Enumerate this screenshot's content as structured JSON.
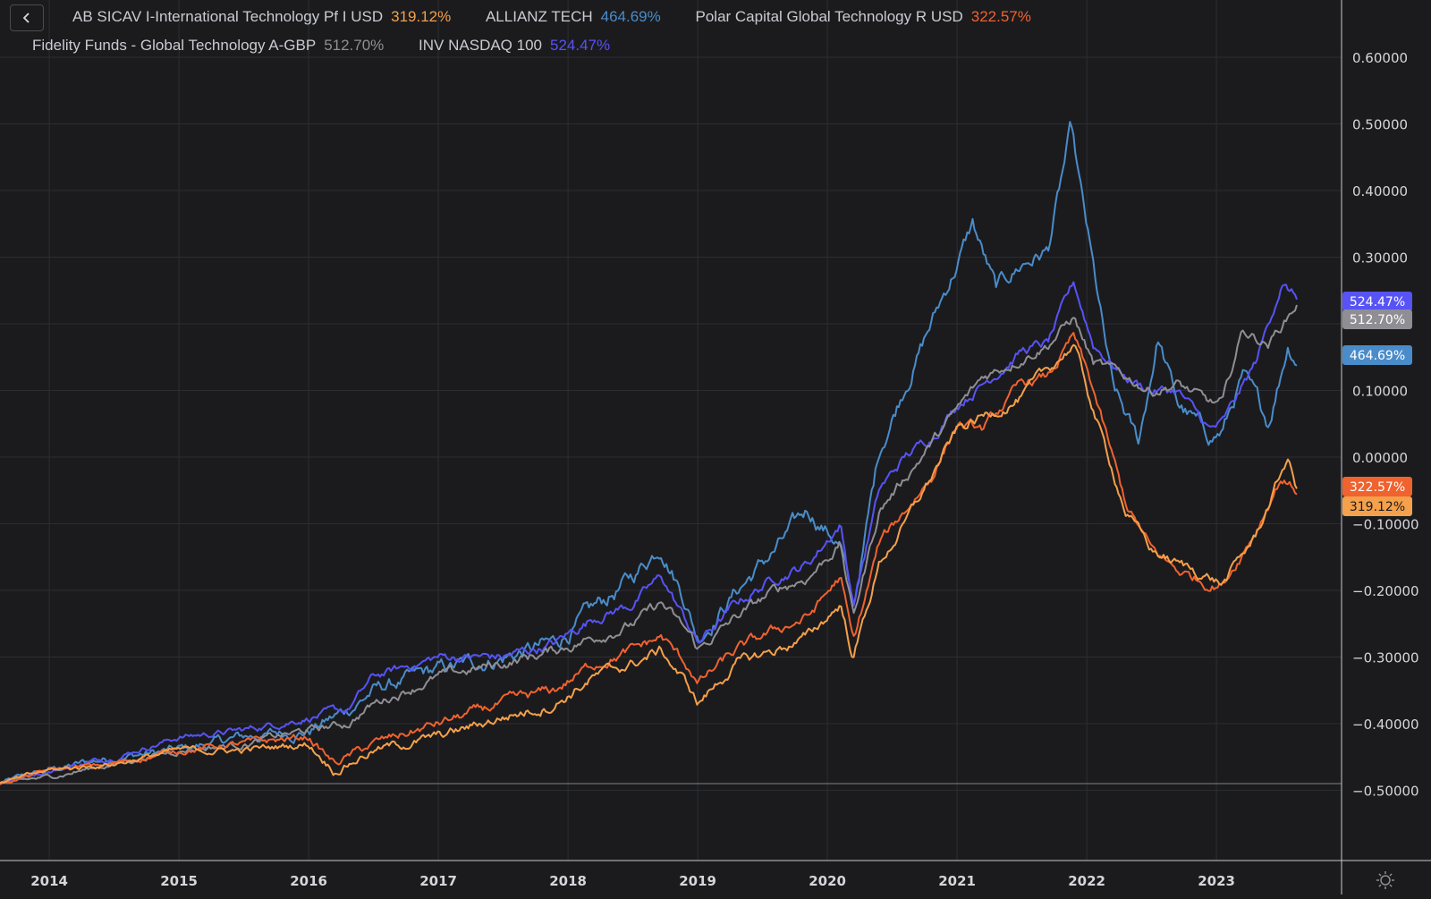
{
  "colors": {
    "background": "#1b1b1e",
    "grid": "#2c2d32",
    "axis_text": "#d5d6db",
    "AB": "#f5a04a",
    "ALLIANZ": "#4a8cc9",
    "POLAR": "#f0622e",
    "FIDELITY": "#8e8e94",
    "NASDAQ": "#5753f5"
  },
  "legend": {
    "row1": [
      {
        "key": "AB",
        "name": "AB SICAV I-International Technology Pf I USD",
        "value": "319.12%"
      },
      {
        "key": "ALLIANZ",
        "name": "ALLIANZ TECH",
        "value": "464.69%"
      },
      {
        "key": "POLAR",
        "name": "Polar Capital Global Technology R USD",
        "value": "322.57%"
      }
    ],
    "row2": [
      {
        "key": "FIDELITY",
        "name": "Fidelity Funds - Global Technology A-GBP",
        "value": "512.70%"
      },
      {
        "key": "NASDAQ",
        "name": "INV NASDAQ 100",
        "value": "524.47%"
      }
    ]
  },
  "chart_data": {
    "type": "line",
    "title": "",
    "xlabel": "",
    "ylabel": "",
    "xlim": [
      2013.62,
      2024.0
    ],
    "ylim": [
      -0.63,
      0.68
    ],
    "y_ticks": [
      "0.60000",
      "0.50000",
      "0.40000",
      "0.30000",
      "0.20000",
      "0.10000",
      "0.00000",
      "−0.10000",
      "−0.20000",
      "−0.30000",
      "−0.40000",
      "−0.50000"
    ],
    "y_tick_values": [
      0.6,
      0.5,
      0.4,
      0.3,
      0.2,
      0.1,
      0.0,
      -0.1,
      -0.2,
      -0.3,
      -0.4,
      -0.5
    ],
    "x_ticks": [
      "2014",
      "2015",
      "2016",
      "2017",
      "2018",
      "2019",
      "2020",
      "2021",
      "2022",
      "2023"
    ],
    "x_tick_values": [
      2014,
      2015,
      2016,
      2017,
      2018,
      2019,
      2020,
      2021,
      2022,
      2023
    ],
    "baseline": -0.49,
    "grid": true,
    "series": [
      {
        "key": "ALLIANZ",
        "name": "ALLIANZ TECH",
        "end_label": "464.69%",
        "x": [
          2013.62,
          2014.0,
          2014.5,
          2015.0,
          2015.5,
          2016.0,
          2016.3,
          2016.5,
          2017.0,
          2017.5,
          2017.9,
          2018.2,
          2018.5,
          2018.72,
          2018.9,
          2019.0,
          2019.3,
          2019.6,
          2019.85,
          2020.1,
          2020.2,
          2020.4,
          2020.6,
          2020.8,
          2021.0,
          2021.12,
          2021.3,
          2021.5,
          2021.7,
          2021.88,
          2021.95,
          2022.05,
          2022.2,
          2022.4,
          2022.55,
          2022.7,
          2022.95,
          2023.05,
          2023.2,
          2023.4,
          2023.55,
          2023.62
        ],
        "y": [
          -0.49,
          -0.47,
          -0.45,
          -0.44,
          -0.42,
          -0.41,
          -0.38,
          -0.35,
          -0.32,
          -0.3,
          -0.28,
          -0.23,
          -0.18,
          -0.13,
          -0.21,
          -0.27,
          -0.2,
          -0.14,
          -0.08,
          -0.13,
          -0.23,
          0.01,
          0.11,
          0.2,
          0.29,
          0.35,
          0.25,
          0.29,
          0.31,
          0.49,
          0.4,
          0.28,
          0.1,
          0.02,
          0.18,
          0.08,
          0.03,
          0.04,
          0.12,
          0.05,
          0.17,
          0.15
        ]
      },
      {
        "key": "NASDAQ",
        "name": "INV NASDAQ 100",
        "end_label": "524.47%",
        "x": [
          2013.62,
          2014.0,
          2014.5,
          2015.0,
          2015.5,
          2016.0,
          2016.3,
          2016.5,
          2017.0,
          2017.5,
          2017.9,
          2018.2,
          2018.5,
          2018.72,
          2018.95,
          2019.0,
          2019.3,
          2019.6,
          2019.85,
          2020.1,
          2020.2,
          2020.4,
          2020.6,
          2020.8,
          2021.0,
          2021.2,
          2021.5,
          2021.7,
          2021.9,
          2022.05,
          2022.3,
          2022.5,
          2022.7,
          2022.95,
          2023.05,
          2023.3,
          2023.5,
          2023.62
        ],
        "y": [
          -0.49,
          -0.47,
          -0.45,
          -0.42,
          -0.41,
          -0.39,
          -0.38,
          -0.33,
          -0.3,
          -0.3,
          -0.28,
          -0.24,
          -0.22,
          -0.18,
          -0.26,
          -0.28,
          -0.22,
          -0.18,
          -0.16,
          -0.1,
          -0.22,
          -0.05,
          0.0,
          0.03,
          0.08,
          0.11,
          0.16,
          0.17,
          0.26,
          0.17,
          0.12,
          0.1,
          0.1,
          0.04,
          0.05,
          0.14,
          0.26,
          0.24
        ]
      },
      {
        "key": "FIDELITY",
        "name": "Fidelity Funds - Global Technology A-GBP",
        "end_label": "512.70%",
        "x": [
          2013.62,
          2014.0,
          2014.5,
          2015.0,
          2015.5,
          2016.0,
          2016.3,
          2016.5,
          2017.0,
          2017.5,
          2017.9,
          2018.2,
          2018.5,
          2018.72,
          2018.95,
          2019.0,
          2019.3,
          2019.6,
          2019.85,
          2020.1,
          2020.2,
          2020.4,
          2020.6,
          2020.8,
          2021.0,
          2021.2,
          2021.5,
          2021.7,
          2021.9,
          2022.05,
          2022.3,
          2022.5,
          2022.7,
          2022.95,
          2023.05,
          2023.2,
          2023.4,
          2023.62
        ],
        "y": [
          -0.49,
          -0.48,
          -0.46,
          -0.44,
          -0.43,
          -0.41,
          -0.4,
          -0.37,
          -0.33,
          -0.31,
          -0.29,
          -0.27,
          -0.25,
          -0.22,
          -0.27,
          -0.29,
          -0.24,
          -0.2,
          -0.18,
          -0.13,
          -0.24,
          -0.08,
          -0.03,
          0.02,
          0.07,
          0.12,
          0.15,
          0.17,
          0.21,
          0.14,
          0.12,
          0.1,
          0.11,
          0.08,
          0.08,
          0.19,
          0.17,
          0.23
        ]
      },
      {
        "key": "POLAR",
        "name": "Polar Capital Global Technology R USD",
        "end_label": "322.57%",
        "x": [
          2013.62,
          2014.0,
          2014.5,
          2015.0,
          2015.5,
          2016.0,
          2016.2,
          2016.5,
          2017.0,
          2017.5,
          2017.9,
          2018.2,
          2018.5,
          2018.72,
          2018.95,
          2019.0,
          2019.3,
          2019.6,
          2019.85,
          2020.1,
          2020.2,
          2020.4,
          2020.6,
          2020.8,
          2021.0,
          2021.2,
          2021.5,
          2021.7,
          2021.9,
          2022.05,
          2022.3,
          2022.5,
          2022.7,
          2022.95,
          2023.05,
          2023.3,
          2023.5,
          2023.62
        ],
        "y": [
          -0.49,
          -0.47,
          -0.46,
          -0.44,
          -0.43,
          -0.42,
          -0.46,
          -0.43,
          -0.4,
          -0.37,
          -0.35,
          -0.31,
          -0.29,
          -0.27,
          -0.32,
          -0.34,
          -0.29,
          -0.26,
          -0.24,
          -0.18,
          -0.28,
          -0.13,
          -0.08,
          -0.03,
          0.05,
          0.04,
          0.11,
          0.12,
          0.18,
          0.1,
          -0.07,
          -0.14,
          -0.17,
          -0.19,
          -0.19,
          -0.11,
          -0.03,
          -0.05
        ]
      },
      {
        "key": "AB",
        "name": "AB SICAV I-International Technology Pf I USD",
        "end_label": "319.12%",
        "x": [
          2013.62,
          2014.0,
          2014.5,
          2015.0,
          2015.5,
          2016.0,
          2016.2,
          2016.5,
          2017.0,
          2017.5,
          2017.9,
          2018.2,
          2018.5,
          2018.72,
          2018.95,
          2019.0,
          2019.3,
          2019.6,
          2019.85,
          2020.1,
          2020.2,
          2020.4,
          2020.6,
          2020.8,
          2021.0,
          2021.2,
          2021.5,
          2021.7,
          2021.9,
          2022.05,
          2022.3,
          2022.5,
          2022.7,
          2022.95,
          2023.05,
          2023.3,
          2023.55,
          2023.62
        ],
        "y": [
          -0.49,
          -0.47,
          -0.46,
          -0.44,
          -0.44,
          -0.43,
          -0.47,
          -0.44,
          -0.42,
          -0.39,
          -0.37,
          -0.33,
          -0.31,
          -0.29,
          -0.35,
          -0.37,
          -0.31,
          -0.29,
          -0.27,
          -0.22,
          -0.3,
          -0.16,
          -0.1,
          -0.03,
          0.04,
          0.06,
          0.09,
          0.13,
          0.17,
          0.07,
          -0.08,
          -0.14,
          -0.16,
          -0.18,
          -0.19,
          -0.12,
          0.0,
          -0.05
        ]
      }
    ]
  }
}
